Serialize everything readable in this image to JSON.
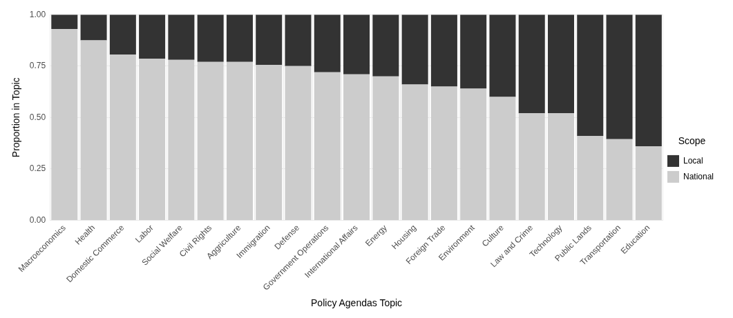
{
  "chart_data": {
    "type": "bar",
    "stacked": true,
    "xlabel": "Policy Agendas Topic",
    "ylabel": "Proportion in Topic",
    "legend_title": "Scope",
    "legend": "right",
    "categories": [
      "Macroeconomics",
      "Health",
      "Domestic Commerce",
      "Labor",
      "Social Welfare",
      "Civil Rights",
      "Aggriculture",
      "Immigration",
      "Defense",
      "Government Operations",
      "International Affairs",
      "Energy",
      "Housing",
      "Foreign Trade",
      "Environment",
      "Culture",
      "Law and Crime",
      "Technology",
      "Public Lands",
      "Transportation",
      "Education"
    ],
    "series": [
      {
        "name": "National",
        "color": "#cccccc",
        "values": [
          0.93,
          0.875,
          0.805,
          0.785,
          0.78,
          0.77,
          0.77,
          0.755,
          0.75,
          0.72,
          0.71,
          0.7,
          0.66,
          0.65,
          0.64,
          0.6,
          0.52,
          0.52,
          0.41,
          0.395,
          0.36
        ]
      },
      {
        "name": "Local",
        "color": "#333333",
        "values": [
          0.07,
          0.125,
          0.195,
          0.215,
          0.22,
          0.23,
          0.23,
          0.245,
          0.25,
          0.28,
          0.29,
          0.3,
          0.34,
          0.35,
          0.36,
          0.4,
          0.48,
          0.48,
          0.59,
          0.605,
          0.64
        ]
      }
    ],
    "ylim": [
      0,
      1
    ],
    "yticks": [
      {
        "value": 0,
        "label": "0.00"
      },
      {
        "value": 0.25,
        "label": "0.25"
      },
      {
        "value": 0.5,
        "label": "0.50"
      },
      {
        "value": 0.75,
        "label": "0.75"
      },
      {
        "value": 1,
        "label": "1.00"
      }
    ],
    "grid": true
  }
}
